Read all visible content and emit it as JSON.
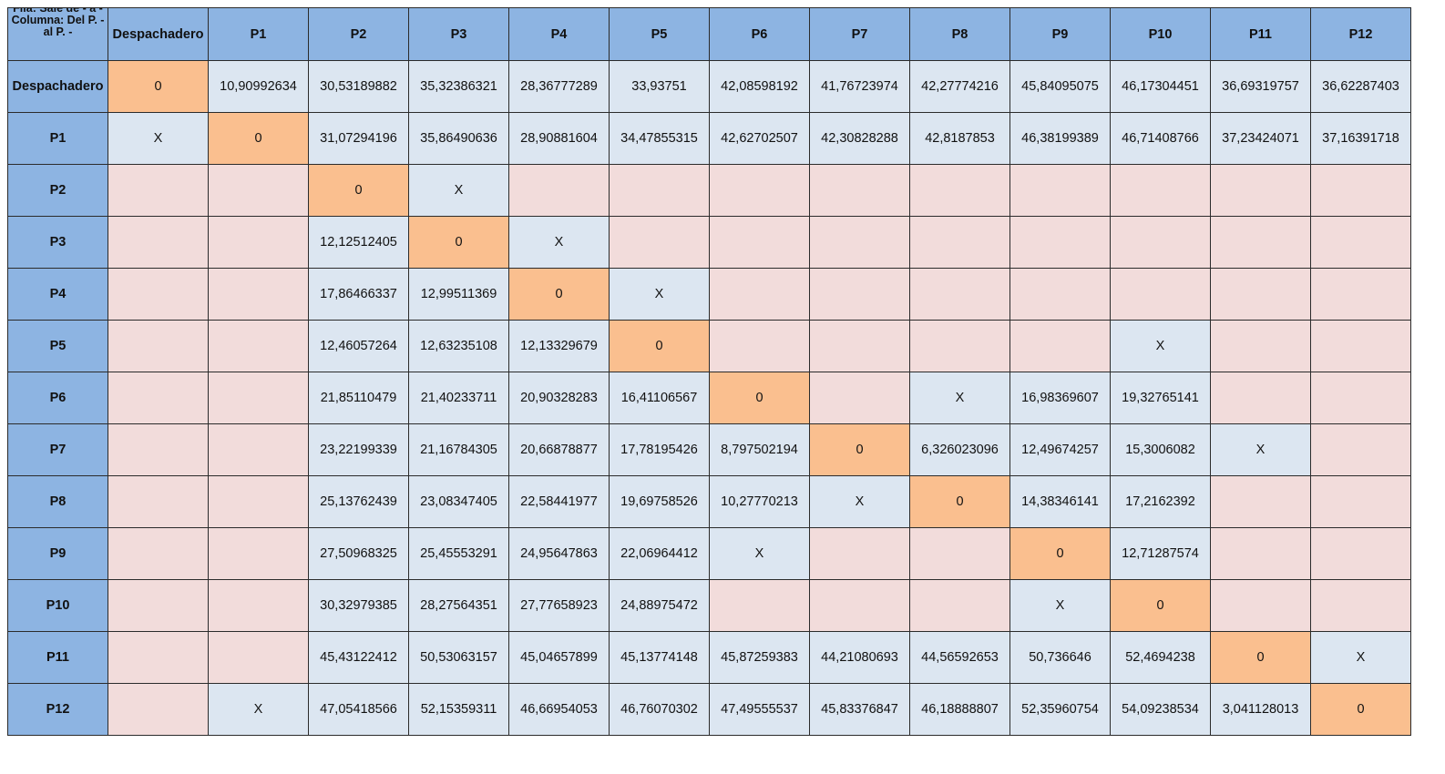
{
  "corner_label": "Fila: Sale de - a - Columna: Del P. - al P. -",
  "columns": [
    "Despachadero",
    "P1",
    "P2",
    "P3",
    "P4",
    "P5",
    "P6",
    "P7",
    "P8",
    "P9",
    "P10",
    "P11",
    "P12"
  ],
  "rows": [
    {
      "label": "Despachadero",
      "cells": [
        "0",
        "10,90992634",
        "30,53189882",
        "35,32386321",
        "28,36777289",
        "33,93751",
        "42,08598192",
        "41,76723974",
        "42,27774216",
        "45,84095075",
        "46,17304451",
        "36,69319757",
        "36,62287403"
      ]
    },
    {
      "label": "P1",
      "cells": [
        "X",
        "0",
        "31,07294196",
        "35,86490636",
        "28,90881604",
        "34,47855315",
        "42,62702507",
        "42,30828288",
        "42,8187853",
        "46,38199389",
        "46,71408766",
        "37,23424071",
        "37,16391718"
      ]
    },
    {
      "label": "P2",
      "cells": [
        "",
        "",
        "0",
        "X",
        "",
        "",
        "",
        "",
        "",
        "",
        "",
        "",
        ""
      ]
    },
    {
      "label": "P3",
      "cells": [
        "",
        "",
        "12,12512405",
        "0",
        "X",
        "",
        "",
        "",
        "",
        "",
        "",
        "",
        ""
      ]
    },
    {
      "label": "P4",
      "cells": [
        "",
        "",
        "17,86466337",
        "12,99511369",
        "0",
        "X",
        "",
        "",
        "",
        "",
        "",
        "",
        ""
      ]
    },
    {
      "label": "P5",
      "cells": [
        "",
        "",
        "12,46057264",
        "12,63235108",
        "12,13329679",
        "0",
        "",
        "",
        "",
        "",
        "X",
        "",
        ""
      ]
    },
    {
      "label": "P6",
      "cells": [
        "",
        "",
        "21,85110479",
        "21,40233711",
        "20,90328283",
        "16,41106567",
        "0",
        "",
        "X",
        "16,98369607",
        "19,32765141",
        "",
        ""
      ]
    },
    {
      "label": "P7",
      "cells": [
        "",
        "",
        "23,22199339",
        "21,16784305",
        "20,66878877",
        "17,78195426",
        "8,797502194",
        "0",
        "6,326023096",
        "12,49674257",
        "15,3006082",
        "X",
        ""
      ]
    },
    {
      "label": "P8",
      "cells": [
        "",
        "",
        "25,13762439",
        "23,08347405",
        "22,58441977",
        "19,69758526",
        "10,27770213",
        "X",
        "0",
        "14,38346141",
        "17,2162392",
        "",
        ""
      ]
    },
    {
      "label": "P9",
      "cells": [
        "",
        "",
        "27,50968325",
        "25,45553291",
        "24,95647863",
        "22,06964412",
        "X",
        "",
        "",
        "0",
        "12,71287574",
        "",
        ""
      ]
    },
    {
      "label": "P10",
      "cells": [
        "",
        "",
        "30,32979385",
        "28,27564351",
        "27,77658923",
        "24,88975472",
        "",
        "",
        "",
        "X",
        "0",
        "",
        ""
      ]
    },
    {
      "label": "P11",
      "cells": [
        "",
        "",
        "45,43122412",
        "50,53063157",
        "45,04657899",
        "45,13774148",
        "45,87259383",
        "44,21080693",
        "44,56592653",
        "50,736646",
        "52,4694238",
        "0",
        "X"
      ]
    },
    {
      "label": "P12",
      "cells": [
        "",
        "X",
        "47,05418566",
        "52,15359311",
        "46,66954053",
        "46,76070302",
        "47,49555537",
        "45,83376847",
        "46,18888807",
        "52,35960754",
        "54,09238534",
        "3,041128013",
        "0"
      ]
    }
  ],
  "colors": {
    "header": "#8db4e2",
    "value_cell": "#dce6f1",
    "empty_cell": "#f2dcdb",
    "diagonal": "#fabf8f"
  }
}
